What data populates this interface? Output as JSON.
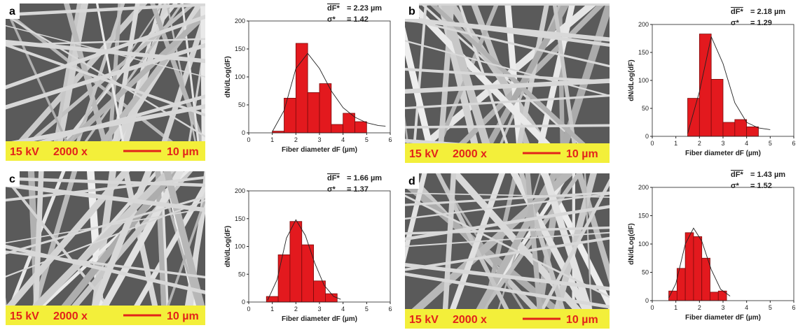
{
  "chart_data": [
    {
      "type": "histogram",
      "bins": [
        1,
        1.5,
        2,
        2.5,
        3,
        3.5,
        4,
        4.5,
        5
      ],
      "values": [
        3,
        62,
        160,
        72,
        88,
        15,
        35,
        20
      ],
      "color": "#e3191e",
      "fit": {
        "x": [
          1,
          1.5,
          2,
          2.5,
          3,
          3.5,
          4,
          4.5,
          5,
          5.5,
          5.8
        ],
        "y": [
          2,
          40,
          115,
          142,
          115,
          75,
          45,
          28,
          18,
          13,
          12
        ]
      },
      "xlim": [
        0,
        6
      ],
      "xticks": [
        0,
        1,
        2,
        3,
        4,
        5,
        6
      ],
      "ylim": [
        0,
        200
      ],
      "yticks": [
        0,
        50,
        100,
        150,
        200
      ],
      "x_label": "Fiber diameter dF (µm)",
      "y_label": "dN/dLog(dF)",
      "mean_symbol": "dF*",
      "mean_value": "= 2.23 µm",
      "sigma_symbol": "σ*",
      "sigma_value": "= 1.42"
    },
    {
      "type": "histogram",
      "bins": [
        1.5,
        2,
        2.5,
        3,
        3.5,
        4,
        4.5
      ],
      "values": [
        68,
        183,
        102,
        25,
        30,
        17
      ],
      "color": "#e3191e",
      "fit": {
        "x": [
          1.5,
          2,
          2.5,
          3,
          3.5,
          4,
          4.5,
          5
        ],
        "y": [
          5,
          80,
          178,
          130,
          60,
          25,
          15,
          12
        ]
      },
      "xlim": [
        0,
        6
      ],
      "xticks": [
        0,
        1,
        2,
        3,
        4,
        5,
        6
      ],
      "ylim": [
        0,
        200
      ],
      "yticks": [
        0,
        50,
        100,
        150,
        200
      ],
      "x_label": "Fiber diameter dF (µm)",
      "y_label": "dN/dLog(dF)",
      "mean_symbol": "dF*",
      "mean_value": "= 2.18 µm",
      "sigma_symbol": "σ*",
      "sigma_value": "= 1.29"
    },
    {
      "type": "histogram",
      "bins": [
        0.75,
        1.25,
        1.75,
        2.25,
        2.75,
        3.25,
        3.75
      ],
      "values": [
        10,
        85,
        145,
        103,
        38,
        15
      ],
      "color": "#e3191e",
      "fit": {
        "x": [
          0.8,
          1.2,
          1.6,
          2,
          2.4,
          2.8,
          3.2,
          3.6,
          3.9
        ],
        "y": [
          3,
          40,
          115,
          148,
          120,
          70,
          30,
          10,
          5
        ]
      },
      "xlim": [
        0,
        6
      ],
      "xticks": [
        0,
        1,
        2,
        3,
        4,
        5,
        6
      ],
      "ylim": [
        0,
        200
      ],
      "yticks": [
        0,
        50,
        100,
        150,
        200
      ],
      "x_label": "Fiber diameter dF (µm)",
      "y_label": "dN/dLog(dF)",
      "mean_symbol": "dF*",
      "mean_value": "= 1.66 µm",
      "sigma_symbol": "σ*",
      "sigma_value": "= 1.37"
    },
    {
      "type": "histogram",
      "bins": [
        0.7,
        1.05,
        1.4,
        1.75,
        2.1,
        2.45,
        2.8,
        3.15
      ],
      "values": [
        17,
        57,
        120,
        113,
        75,
        15,
        17
      ],
      "color": "#e3191e",
      "fit": {
        "x": [
          0.7,
          1,
          1.4,
          1.75,
          2.1,
          2.5,
          2.9,
          3.3
        ],
        "y": [
          5,
          30,
          100,
          128,
          105,
          55,
          20,
          8
        ]
      },
      "xlim": [
        0,
        6
      ],
      "xticks": [
        0,
        1,
        2,
        3,
        4,
        5,
        6
      ],
      "ylim": [
        0,
        200
      ],
      "yticks": [
        0,
        50,
        100,
        150,
        200
      ],
      "x_label": "Fiber diameter dF (µm)",
      "y_label": "dN/dLog(dF)",
      "mean_symbol": "dF*",
      "mean_value": "= 1.43 µm",
      "sigma_symbol": "σ*",
      "sigma_value": "= 1.52"
    }
  ],
  "images": [
    {
      "letter": "a",
      "voltage": "15 kV",
      "magnification": "2000 x",
      "scale": "10 µm"
    },
    {
      "letter": "b",
      "voltage": "15 kV",
      "magnification": "2000 x",
      "scale": "10 µm"
    },
    {
      "letter": "c",
      "voltage": "15 kV",
      "magnification": "2000 x",
      "scale": "10 µm"
    },
    {
      "letter": "d",
      "voltage": "15 kV",
      "magnification": "2000 x",
      "scale": "10 µm"
    }
  ]
}
